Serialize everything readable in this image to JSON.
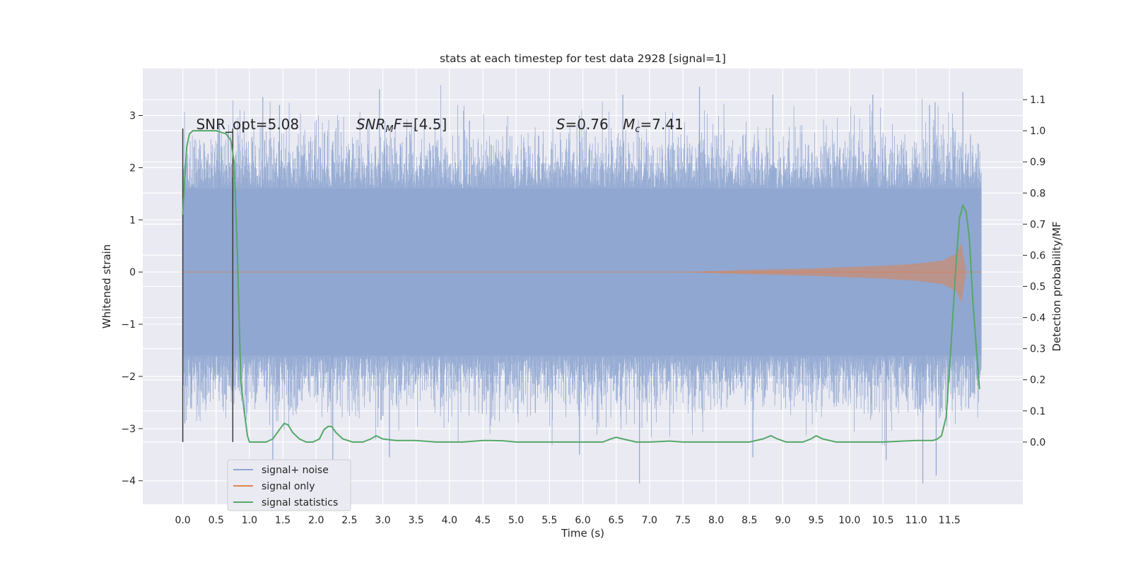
{
  "chart_data": {
    "type": "line",
    "title": "stats at each timestep for test data 2928 [signal=1]",
    "xlabel": "Time (s)",
    "ylabel": "Whitened strain",
    "ylabel_right": "Detection probability/MF",
    "xlim": [
      -0.6,
      12.6
    ],
    "ylim": [
      -4.45,
      3.9
    ],
    "ylim_right": [
      -0.2,
      1.2
    ],
    "x_ticks": [
      "0.0",
      "0.5",
      "1.0",
      "1.5",
      "2.0",
      "2.5",
      "3.0",
      "3.5",
      "4.0",
      "4.5",
      "5.0",
      "5.5",
      "6.0",
      "6.5",
      "7.0",
      "7.5",
      "8.0",
      "8.5",
      "9.0",
      "9.5",
      "10.0",
      "10.5",
      "11.0",
      "11.5"
    ],
    "y_ticks": [
      "3",
      "2",
      "1",
      "0",
      "−1",
      "−2",
      "−3",
      "−4"
    ],
    "y_right_ticks": [
      "1.1",
      "1.0",
      "0.9",
      "0.8",
      "0.7",
      "0.6",
      "0.5",
      "0.4",
      "0.3",
      "0.2",
      "0.1",
      "0.0"
    ],
    "grid": true,
    "legend_position": "lower-left",
    "annotations": {
      "snr_opt": "SNR_opt=5.08",
      "snr_mf": "SNR_MF=[4.5]",
      "s_val": "S=0.76",
      "mc_val": "M_c=7.41"
    },
    "vlines_x": [
      0.0,
      0.75
    ],
    "series": [
      {
        "name": "signal+ noise",
        "color": "#8fa6d0",
        "axis": "left",
        "x_range": [
          0.0,
          11.98
        ],
        "band_rms": 1.0,
        "peak_samples": [
          [
            0.03,
            -2.9
          ],
          [
            0.12,
            -2.6
          ],
          [
            0.17,
            2.4
          ],
          [
            0.55,
            2.9
          ],
          [
            0.95,
            2.2
          ],
          [
            1.2,
            3.35
          ],
          [
            1.35,
            -3.6
          ],
          [
            1.45,
            3.2
          ],
          [
            2.25,
            -3.6
          ],
          [
            2.95,
            3.5
          ],
          [
            3.1,
            -3.55
          ],
          [
            4.3,
            2.9
          ],
          [
            5.95,
            3.0
          ],
          [
            5.95,
            -3.5
          ],
          [
            6.6,
            3.4
          ],
          [
            6.85,
            -4.05
          ],
          [
            7.75,
            3.55
          ],
          [
            8.55,
            -3.55
          ],
          [
            8.85,
            3.4
          ],
          [
            10.35,
            3.4
          ],
          [
            10.55,
            -3.6
          ],
          [
            11.1,
            -4.05
          ],
          [
            11.2,
            3.2
          ],
          [
            11.3,
            -3.9
          ],
          [
            11.7,
            3.45
          ]
        ]
      },
      {
        "name": "signal only",
        "color": "#dd8452",
        "axis": "left",
        "envelope": [
          [
            0.0,
            0.0
          ],
          [
            7.5,
            0.0
          ],
          [
            8.5,
            0.04
          ],
          [
            9.5,
            0.07
          ],
          [
            10.5,
            0.12
          ],
          [
            11.0,
            0.16
          ],
          [
            11.4,
            0.22
          ],
          [
            11.6,
            0.35
          ],
          [
            11.68,
            0.55
          ],
          [
            11.75,
            0.0
          ]
        ]
      },
      {
        "name": "signal statistics",
        "color": "#55a868",
        "axis": "right",
        "x": [
          0.0,
          0.03,
          0.06,
          0.1,
          0.15,
          0.3,
          0.5,
          0.65,
          0.72,
          0.77,
          0.82,
          0.87,
          0.92,
          0.97,
          1.0,
          1.1,
          1.25,
          1.35,
          1.45,
          1.52,
          1.58,
          1.65,
          1.75,
          1.85,
          1.95,
          2.05,
          2.12,
          2.18,
          2.23,
          2.3,
          2.4,
          2.55,
          2.7,
          2.82,
          2.9,
          3.0,
          3.2,
          3.5,
          3.8,
          4.2,
          4.5,
          4.6,
          4.8,
          5.0,
          5.2,
          5.5,
          5.8,
          6.0,
          6.3,
          6.42,
          6.5,
          6.6,
          6.8,
          7.0,
          7.2,
          7.3,
          7.5,
          8.0,
          8.5,
          8.7,
          8.82,
          8.92,
          9.05,
          9.3,
          9.42,
          9.5,
          9.6,
          9.8,
          10.0,
          10.5,
          11.0,
          11.1,
          11.25,
          11.32,
          11.38,
          11.45,
          11.52,
          11.6,
          11.65,
          11.7,
          11.75,
          11.8,
          11.85,
          11.95
        ],
        "y": [
          0.73,
          0.85,
          0.95,
          0.99,
          1.0,
          1.0,
          1.0,
          0.99,
          0.97,
          0.9,
          0.6,
          0.2,
          0.1,
          0.02,
          0.0,
          0.0,
          0.0,
          0.01,
          0.04,
          0.06,
          0.055,
          0.03,
          0.01,
          0.0,
          0.0,
          0.01,
          0.04,
          0.05,
          0.05,
          0.03,
          0.01,
          0.0,
          0.0,
          0.01,
          0.02,
          0.01,
          0.005,
          0.005,
          0.0,
          0.0,
          0.005,
          0.005,
          0.004,
          0.0,
          0.0,
          0.0,
          0.0,
          0.0,
          0.0,
          0.01,
          0.015,
          0.01,
          0.0,
          0.0,
          0.002,
          0.003,
          0.0,
          0.0,
          0.0,
          0.01,
          0.02,
          0.01,
          0.0,
          0.0,
          0.01,
          0.02,
          0.01,
          0.0,
          0.0,
          0.0,
          0.005,
          0.005,
          0.005,
          0.01,
          0.02,
          0.08,
          0.3,
          0.58,
          0.72,
          0.76,
          0.74,
          0.65,
          0.45,
          0.17
        ]
      }
    ]
  }
}
